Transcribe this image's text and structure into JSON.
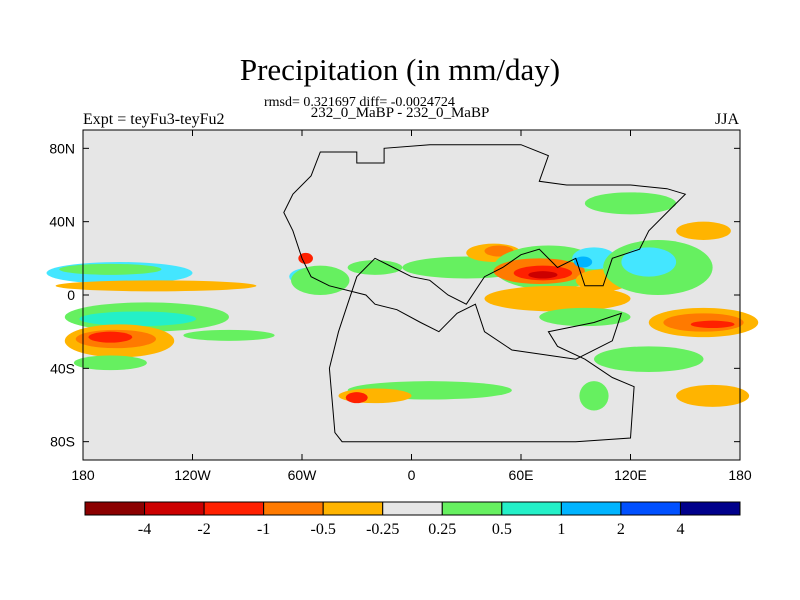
{
  "title": "Precipitation (in mm/day)",
  "stats": "rmsd= 0.321697 diff= -0.0024724",
  "subtitle": "232_0_MaBP - 232_0_MaBP",
  "left_label": "Expt = teyFu3-teyFu2",
  "right_label": "JJA",
  "map": {
    "projection": "cylindrical-equidistant",
    "lon_range": [
      -180,
      180
    ],
    "lat_range": [
      -90,
      90
    ],
    "x_ticks": [
      {
        "lon": -180,
        "label": "180"
      },
      {
        "lon": -120,
        "label": "120W"
      },
      {
        "lon": -60,
        "label": "60W"
      },
      {
        "lon": 0,
        "label": "0"
      },
      {
        "lon": 60,
        "label": "60E"
      },
      {
        "lon": 120,
        "label": "120E"
      },
      {
        "lon": 180,
        "label": "180"
      }
    ],
    "y_ticks": [
      {
        "lat": 80,
        "label": "80N"
      },
      {
        "lat": 40,
        "label": "40N"
      },
      {
        "lat": 0,
        "label": "0"
      },
      {
        "lat": -40,
        "label": "40S"
      },
      {
        "lat": -80,
        "label": "80S"
      }
    ],
    "background_color": "#e6e6e6",
    "regions": [
      {
        "name": "pacific-nh-tropics",
        "lon": -160,
        "lat": 12,
        "rx": 40,
        "ry": 6,
        "color": "#44e6ff"
      },
      {
        "name": "pacific-nh-tropics-core",
        "lon": -165,
        "lat": 14,
        "rx": 28,
        "ry": 3,
        "color": "#66f060"
      },
      {
        "name": "pacific-equator",
        "lon": -140,
        "lat": 5,
        "rx": 55,
        "ry": 3,
        "color": "#ffb400"
      },
      {
        "name": "pacific-sh-band",
        "lon": -145,
        "lat": -12,
        "rx": 45,
        "ry": 8,
        "color": "#66f060"
      },
      {
        "name": "pacific-sh-band-inner",
        "lon": -150,
        "lat": -13,
        "rx": 32,
        "ry": 4,
        "color": "#24f0c8"
      },
      {
        "name": "pacific-sh-rain",
        "lon": -160,
        "lat": -25,
        "rx": 30,
        "ry": 9,
        "color": "#ffb400"
      },
      {
        "name": "pacific-sh-rain-core",
        "lon": -162,
        "lat": -24,
        "rx": 22,
        "ry": 5,
        "color": "#ff7a00"
      },
      {
        "name": "pacific-sh-rain-peak",
        "lon": -165,
        "lat": -23,
        "rx": 12,
        "ry": 3,
        "color": "#ff2000"
      },
      {
        "name": "pacific-sh-south",
        "lon": -165,
        "lat": -37,
        "rx": 20,
        "ry": 4,
        "color": "#66f060"
      },
      {
        "name": "central-pacific-mid",
        "lon": -100,
        "lat": -22,
        "rx": 25,
        "ry": 3,
        "color": "#66f060"
      },
      {
        "name": "caribbean-patch",
        "lon": -55,
        "lat": 10,
        "rx": 12,
        "ry": 5,
        "color": "#44e6ff"
      },
      {
        "name": "caribbean-patch-green",
        "lon": -50,
        "lat": 8,
        "rx": 16,
        "ry": 8,
        "color": "#66f060"
      },
      {
        "name": "caribbean-red",
        "lon": -58,
        "lat": 20,
        "rx": 4,
        "ry": 3,
        "color": "#ff2000"
      },
      {
        "name": "atlantic-nh",
        "lon": -20,
        "lat": 15,
        "rx": 15,
        "ry": 4,
        "color": "#66f060"
      },
      {
        "name": "africa-north",
        "lon": 30,
        "lat": 15,
        "rx": 35,
        "ry": 6,
        "color": "#66f060"
      },
      {
        "name": "africa-rain",
        "lon": 45,
        "lat": 23,
        "rx": 15,
        "ry": 5,
        "color": "#ffb400"
      },
      {
        "name": "africa-rain-core",
        "lon": 48,
        "lat": 24,
        "rx": 8,
        "ry": 3,
        "color": "#ff7a00"
      },
      {
        "name": "monsoon-green",
        "lon": 75,
        "lat": 15,
        "rx": 30,
        "ry": 12,
        "color": "#66f060"
      },
      {
        "name": "monsoon-orange",
        "lon": 70,
        "lat": 13,
        "rx": 25,
        "ry": 7,
        "color": "#ff7a00"
      },
      {
        "name": "monsoon-red",
        "lon": 72,
        "lat": 12,
        "rx": 16,
        "ry": 4,
        "color": "#ff2000"
      },
      {
        "name": "monsoon-darkred",
        "lon": 72,
        "lat": 11,
        "rx": 8,
        "ry": 2,
        "color": "#cc0000"
      },
      {
        "name": "asia-cyan",
        "lon": 100,
        "lat": 20,
        "rx": 12,
        "ry": 6,
        "color": "#44e6ff"
      },
      {
        "name": "asia-cyan-inner",
        "lon": 94,
        "lat": 18,
        "rx": 5,
        "ry": 3,
        "color": "#00b4ff"
      },
      {
        "name": "asia-orange",
        "lon": 105,
        "lat": 8,
        "rx": 15,
        "ry": 6,
        "color": "#ffb400"
      },
      {
        "name": "west-pacific-green",
        "lon": 135,
        "lat": 15,
        "rx": 30,
        "ry": 15,
        "color": "#66f060"
      },
      {
        "name": "west-pacific-cyan",
        "lon": 130,
        "lat": 18,
        "rx": 15,
        "ry": 8,
        "color": "#44e6ff"
      },
      {
        "name": "west-pacific-yellow",
        "lon": 160,
        "lat": 35,
        "rx": 15,
        "ry": 5,
        "color": "#ffb400"
      },
      {
        "name": "north-asia-green",
        "lon": 120,
        "lat": 50,
        "rx": 25,
        "ry": 6,
        "color": "#66f060"
      },
      {
        "name": "indian-ocean-orange",
        "lon": 80,
        "lat": -2,
        "rx": 40,
        "ry": 7,
        "color": "#ffb400"
      },
      {
        "name": "indian-ocean-green",
        "lon": 95,
        "lat": -12,
        "rx": 25,
        "ry": 5,
        "color": "#66f060"
      },
      {
        "name": "south-pacific-east",
        "lon": 160,
        "lat": -15,
        "rx": 30,
        "ry": 8,
        "color": "#ffb400"
      },
      {
        "name": "south-pacific-east-core",
        "lon": 160,
        "lat": -15,
        "rx": 22,
        "ry": 5,
        "color": "#ff7a00"
      },
      {
        "name": "south-pacific-east-peak",
        "lon": 165,
        "lat": -16,
        "rx": 12,
        "ry": 2,
        "color": "#ff2000"
      },
      {
        "name": "australia-south-green",
        "lon": 130,
        "lat": -35,
        "rx": 30,
        "ry": 7,
        "color": "#66f060"
      },
      {
        "name": "southern-ocean-yellow",
        "lon": 165,
        "lat": -55,
        "rx": 20,
        "ry": 6,
        "color": "#ffb400"
      },
      {
        "name": "southern-rain-belt",
        "lon": 10,
        "lat": -52,
        "rx": 45,
        "ry": 5,
        "color": "#66f060"
      },
      {
        "name": "southern-rain-orange",
        "lon": -20,
        "lat": -55,
        "rx": 20,
        "ry": 4,
        "color": "#ffb400"
      },
      {
        "name": "southern-rain-red",
        "lon": -30,
        "lat": -56,
        "rx": 6,
        "ry": 3,
        "color": "#ff2000"
      },
      {
        "name": "far-south-east",
        "lon": 100,
        "lat": -55,
        "rx": 8,
        "ry": 8,
        "color": "#66f060"
      }
    ],
    "continent_outline": [
      [
        -50,
        78
      ],
      [
        -30,
        78
      ],
      [
        -30,
        72
      ],
      [
        -15,
        72
      ],
      [
        -15,
        80
      ],
      [
        10,
        82
      ],
      [
        60,
        82
      ],
      [
        75,
        76
      ],
      [
        70,
        62
      ],
      [
        85,
        60
      ],
      [
        120,
        60
      ],
      [
        140,
        58
      ],
      [
        150,
        55
      ],
      [
        140,
        45
      ],
      [
        130,
        35
      ],
      [
        125,
        25
      ],
      [
        110,
        20
      ],
      [
        105,
        5
      ],
      [
        95,
        5
      ],
      [
        90,
        20
      ],
      [
        80,
        15
      ],
      [
        70,
        25
      ],
      [
        60,
        22
      ],
      [
        50,
        15
      ],
      [
        40,
        10
      ],
      [
        30,
        -5
      ],
      [
        20,
        0
      ],
      [
        10,
        8
      ],
      [
        0,
        10
      ],
      [
        -10,
        15
      ],
      [
        -20,
        20
      ],
      [
        -30,
        10
      ],
      [
        -35,
        -5
      ],
      [
        -40,
        -20
      ],
      [
        -45,
        -40
      ],
      [
        -42,
        -75
      ],
      [
        -38,
        -80
      ],
      [
        90,
        -80
      ],
      [
        120,
        -78
      ],
      [
        122,
        -50
      ],
      [
        110,
        -45
      ],
      [
        95,
        -35
      ],
      [
        80,
        -28
      ],
      [
        75,
        -20
      ],
      [
        100,
        -15
      ],
      [
        115,
        -10
      ],
      [
        110,
        -25
      ],
      [
        90,
        -35
      ],
      [
        55,
        -30
      ],
      [
        40,
        -20
      ],
      [
        35,
        -5
      ],
      [
        25,
        -10
      ],
      [
        15,
        -20
      ],
      [
        5,
        -15
      ],
      [
        -8,
        -8
      ],
      [
        -20,
        -5
      ],
      [
        -25,
        0
      ],
      [
        -45,
        5
      ],
      [
        -55,
        10
      ],
      [
        -60,
        20
      ],
      [
        -65,
        35
      ],
      [
        -70,
        45
      ],
      [
        -65,
        55
      ],
      [
        -55,
        65
      ],
      [
        -50,
        78
      ]
    ]
  },
  "colorbar": {
    "colors": [
      "#8b0000",
      "#cc0000",
      "#ff2000",
      "#ff7a00",
      "#ffb400",
      "#e6e6e6",
      "#66f060",
      "#24f0c8",
      "#00b4ff",
      "#0050ff",
      "#00008b"
    ],
    "labels": [
      "-4",
      "-2",
      "-1",
      "-0.5",
      "-0.25",
      "0.25",
      "0.5",
      "1",
      "2",
      "4"
    ]
  }
}
